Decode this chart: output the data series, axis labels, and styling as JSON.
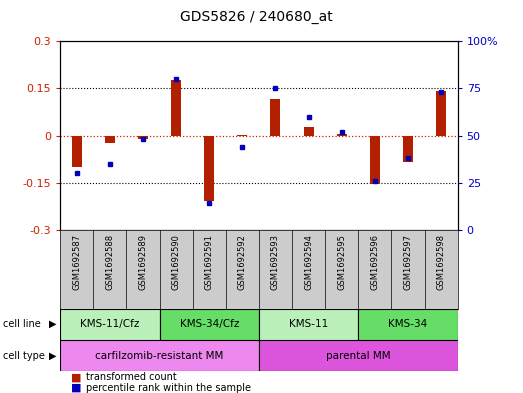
{
  "title": "GDS5826 / 240680_at",
  "samples": [
    "GSM1692587",
    "GSM1692588",
    "GSM1692589",
    "GSM1692590",
    "GSM1692591",
    "GSM1692592",
    "GSM1692593",
    "GSM1692594",
    "GSM1692595",
    "GSM1692596",
    "GSM1692597",
    "GSM1692598"
  ],
  "transformed_count": [
    -0.1,
    -0.022,
    -0.012,
    0.178,
    -0.208,
    0.003,
    0.115,
    0.027,
    0.005,
    -0.155,
    -0.085,
    0.142
  ],
  "percentile_rank": [
    30,
    35,
    48,
    80,
    14,
    44,
    75,
    60,
    52,
    26,
    38,
    73
  ],
  "cell_line_groups": [
    {
      "label": "KMS-11/Cfz",
      "start": 0,
      "end": 3,
      "color": "#bbf0bb"
    },
    {
      "label": "KMS-34/Cfz",
      "start": 3,
      "end": 6,
      "color": "#66dd66"
    },
    {
      "label": "KMS-11",
      "start": 6,
      "end": 9,
      "color": "#bbf0bb"
    },
    {
      "label": "KMS-34",
      "start": 9,
      "end": 12,
      "color": "#66dd66"
    }
  ],
  "cell_type_groups": [
    {
      "label": "carfilzomib-resistant MM",
      "start": 0,
      "end": 6,
      "color": "#ee88ee"
    },
    {
      "label": "parental MM",
      "start": 6,
      "end": 12,
      "color": "#dd55dd"
    }
  ],
  "ylim_left": [
    -0.3,
    0.3
  ],
  "ylim_right": [
    0,
    100
  ],
  "yticks_left": [
    -0.3,
    -0.15,
    0,
    0.15,
    0.3
  ],
  "yticks_right": [
    0,
    25,
    50,
    75,
    100
  ],
  "bar_color": "#b22000",
  "dot_color": "#0000bb",
  "background_color": "#ffffff",
  "plot_bg_color": "#ffffff",
  "label_bg_color": "#cccccc",
  "bar_width": 0.3
}
